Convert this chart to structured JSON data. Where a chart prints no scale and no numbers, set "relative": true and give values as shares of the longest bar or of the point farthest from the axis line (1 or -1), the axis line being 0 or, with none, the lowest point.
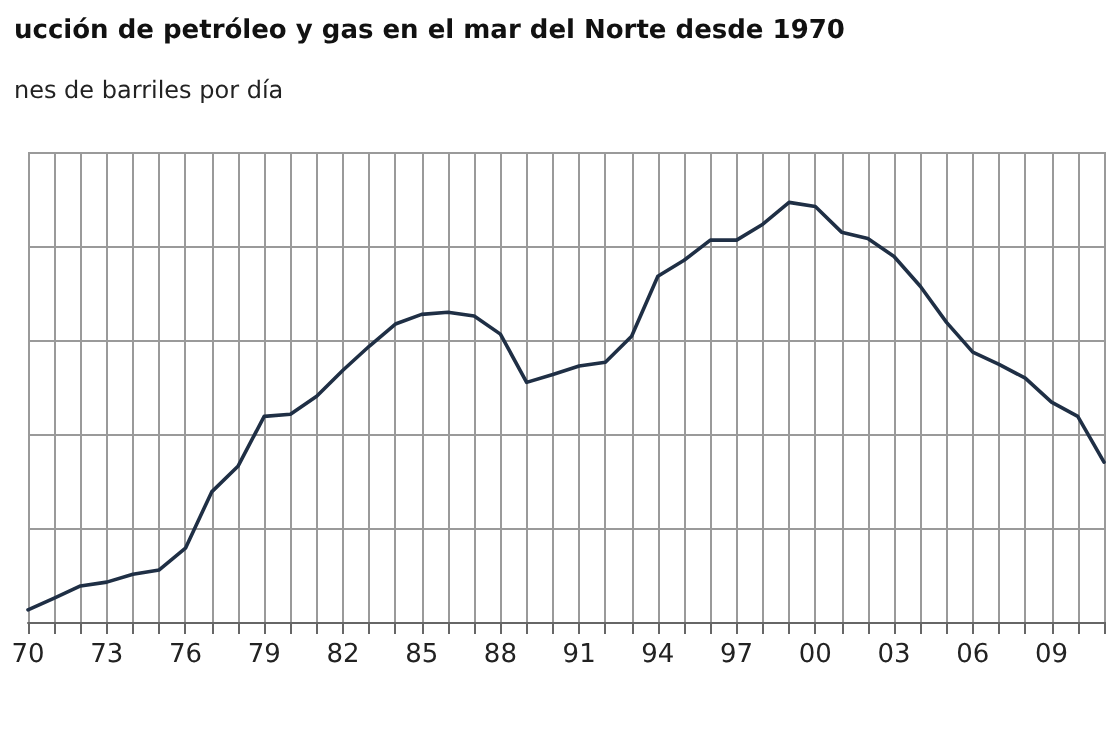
{
  "chart_data": {
    "type": "line",
    "title": "ucción de petróleo y gas en el mar del Norte desde 1970",
    "subtitle": "nes de barriles por día",
    "relative": true,
    "grid": true,
    "marker": "none",
    "line_style": "solid",
    "categories": [
      "70",
      null,
      null,
      "73",
      null,
      null,
      "76",
      null,
      null,
      "79",
      null,
      null,
      "82",
      null,
      null,
      "85",
      null,
      null,
      "88",
      null,
      null,
      "91",
      null,
      null,
      "94",
      null,
      null,
      "97",
      null,
      null,
      "00",
      null,
      null,
      "03",
      null,
      null,
      "06",
      null,
      null,
      "09",
      null,
      null
    ],
    "series": [
      {
        "color": "#1f2f45",
        "values": [
          0.029,
          0.057,
          0.086,
          0.095,
          0.114,
          0.124,
          0.176,
          0.31,
          0.371,
          0.49,
          0.495,
          0.538,
          0.6,
          0.657,
          0.71,
          0.733,
          0.738,
          0.729,
          0.686,
          0.571,
          0.59,
          0.61,
          0.619,
          0.681,
          0.824,
          0.862,
          0.91,
          0.91,
          0.948,
          1,
          0.99,
          0.929,
          0.914,
          0.871,
          0.8,
          0.714,
          0.643,
          0.614,
          0.581,
          0.524,
          0.49,
          0.381
        ]
      }
    ]
  }
}
